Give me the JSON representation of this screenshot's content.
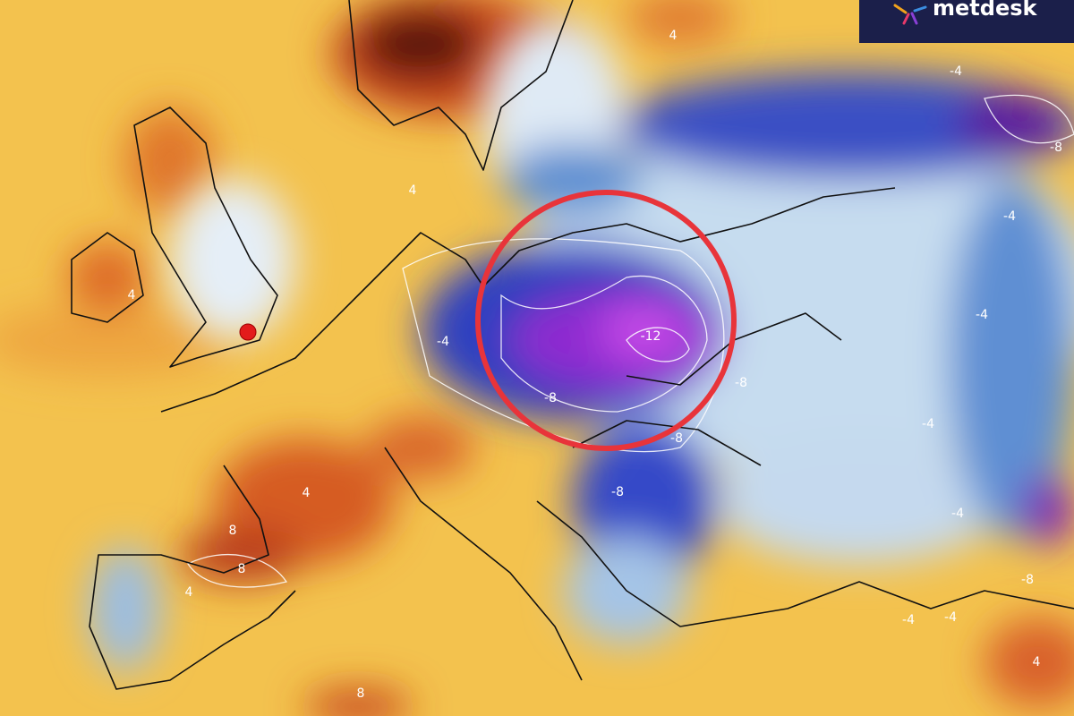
{
  "logo": {
    "text": "metdesk"
  },
  "contour_labels": [
    -12,
    -8,
    -8,
    -8,
    -8,
    -8,
    -8,
    -4,
    -4,
    -4,
    -4,
    -4,
    -4,
    -4,
    -4,
    4,
    4,
    4,
    4,
    4,
    8,
    8,
    8,
    4
  ]
}
